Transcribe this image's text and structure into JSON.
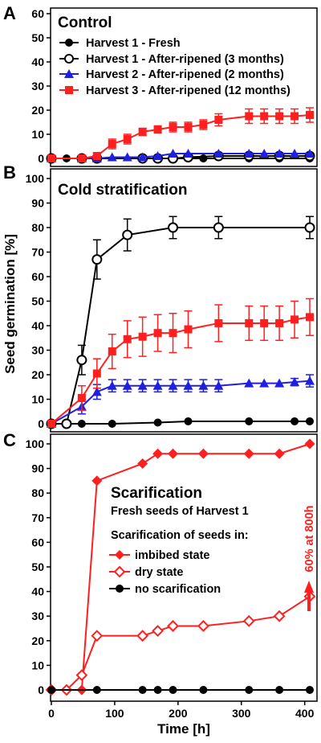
{
  "chart_data": [
    {
      "panel": "A",
      "type": "line",
      "title": "Control",
      "ylim": [
        0,
        60
      ],
      "yticks": [
        0,
        10,
        20,
        30,
        40,
        50,
        60
      ],
      "xlim": [
        0,
        408
      ],
      "series": [
        {
          "name": "Harvest 1 - Fresh",
          "color": "#000000",
          "marker": "circle-filled",
          "x": [
            0,
            24,
            48,
            72,
            144,
            168,
            192,
            240,
            312,
            360,
            408
          ],
          "y": [
            0,
            0,
            0,
            0,
            0,
            0,
            0,
            0,
            0,
            0,
            0
          ],
          "err": []
        },
        {
          "name": "Harvest 1 - After-ripened (3 months)",
          "color": "#000000",
          "marker": "circle-open",
          "x": [
            0,
            48,
            72,
            144,
            168,
            192,
            216,
            264,
            312,
            360,
            408
          ],
          "y": [
            0,
            0,
            0,
            0,
            0,
            0,
            0.5,
            1,
            1,
            1,
            1
          ],
          "err": []
        },
        {
          "name": "Harvest 2 - After-ripened (2 months)",
          "color": "#1f1fe0",
          "marker": "triangle",
          "x": [
            0,
            48,
            72,
            96,
            120,
            144,
            168,
            192,
            216,
            264,
            312,
            336,
            360,
            384,
            408
          ],
          "y": [
            0,
            0,
            0,
            0.5,
            0.5,
            0.5,
            1,
            2,
            2,
            2,
            2,
            2,
            2,
            2,
            2
          ],
          "err": []
        },
        {
          "name": "Harvest 3 - After-ripened (12 months)",
          "color": "#ff1f1f",
          "marker": "square",
          "x": [
            0,
            48,
            72,
            96,
            120,
            144,
            168,
            192,
            216,
            240,
            264,
            312,
            336,
            360,
            384,
            408
          ],
          "y": [
            0,
            0,
            1,
            6,
            8,
            11,
            12,
            13,
            13,
            14,
            16,
            17.5,
            17.5,
            17.5,
            17.5,
            18
          ],
          "err": [
            0,
            0,
            1,
            2,
            2,
            1.5,
            1.5,
            2,
            2,
            2,
            2.5,
            3,
            3,
            3,
            3,
            3
          ]
        }
      ]
    },
    {
      "panel": "B",
      "type": "line",
      "title": "Cold stratification",
      "ylabel": "Seed germination [%]",
      "ylim": [
        0,
        100
      ],
      "yticks": [
        0,
        10,
        20,
        30,
        40,
        50,
        60,
        70,
        80,
        90,
        100
      ],
      "xlim": [
        0,
        408
      ],
      "series": [
        {
          "name": "Harvest 1 - Fresh",
          "color": "#000000",
          "marker": "circle-filled",
          "x": [
            0,
            48,
            96,
            168,
            216,
            312,
            384,
            408
          ],
          "y": [
            0,
            0,
            0,
            0.5,
            1,
            1,
            1,
            1
          ],
          "err": []
        },
        {
          "name": "Harvest 1 - After-ripened (3 months)",
          "color": "#000000",
          "marker": "circle-open",
          "x": [
            0,
            24,
            48,
            72,
            120,
            192,
            264,
            408
          ],
          "y": [
            0,
            0,
            26,
            67,
            77,
            80,
            80,
            80
          ],
          "err": [
            0,
            0,
            6,
            8,
            6.5,
            4.5,
            4.5,
            4.5
          ]
        },
        {
          "name": "Harvest 2 - After-ripened (2 months)",
          "color": "#1f1fe0",
          "marker": "triangle",
          "x": [
            0,
            48,
            72,
            96,
            120,
            144,
            168,
            192,
            216,
            240,
            264,
            312,
            336,
            360,
            384,
            408
          ],
          "y": [
            0,
            7,
            13,
            15.5,
            15.5,
            15.5,
            15.5,
            15.5,
            15.5,
            15.5,
            15.5,
            16.5,
            16.5,
            16.5,
            17,
            17.5
          ],
          "err": [
            0,
            3,
            3,
            2.5,
            2.5,
            2.5,
            2.5,
            2.5,
            2.5,
            2.5,
            2.5,
            0,
            0,
            0,
            1.5,
            2.5
          ]
        },
        {
          "name": "Harvest 3 - After-ripened (12 months)",
          "color": "#ff1f1f",
          "marker": "square",
          "x": [
            0,
            48,
            72,
            96,
            120,
            144,
            168,
            192,
            216,
            264,
            312,
            336,
            360,
            384,
            408
          ],
          "y": [
            0,
            10.5,
            20.5,
            29.5,
            34.5,
            35.5,
            37,
            37,
            38.5,
            41,
            41,
            41,
            41,
            42.5,
            43.5
          ],
          "err": [
            0,
            5,
            6,
            7,
            7.5,
            8,
            7.5,
            8,
            7.5,
            7.5,
            7,
            7,
            7,
            7.5,
            7.5
          ]
        }
      ]
    },
    {
      "panel": "C",
      "type": "line",
      "title": "Scarification",
      "subtitle": "Fresh seeds of Harvest 1",
      "legend_title": "Scarification of seeds in:",
      "xlabel": "Time [h]",
      "ylim": [
        0,
        100
      ],
      "yticks": [
        0,
        10,
        20,
        30,
        40,
        50,
        60,
        70,
        80,
        90,
        100
      ],
      "xlim": [
        0,
        408
      ],
      "xticks": [
        0,
        100,
        200,
        300,
        400
      ],
      "annotation": "60% at 800h",
      "series": [
        {
          "name": "imbibed state",
          "color": "#ff1f1f",
          "marker": "diamond-filled",
          "x": [
            0,
            24,
            48,
            72,
            144,
            168,
            192,
            240,
            312,
            360,
            408
          ],
          "y": [
            0,
            0,
            0,
            85,
            92,
            96,
            96,
            96,
            96,
            96,
            100
          ],
          "err": []
        },
        {
          "name": "dry state",
          "color": "#ff1f1f",
          "marker": "diamond-open",
          "x": [
            0,
            24,
            48,
            72,
            144,
            168,
            192,
            240,
            312,
            360,
            408
          ],
          "y": [
            0,
            0,
            6,
            22,
            22,
            24,
            26,
            26,
            28,
            30,
            38
          ],
          "err": []
        },
        {
          "name": "no scarification",
          "color": "#000000",
          "marker": "circle-filled",
          "x": [
            0,
            72,
            144,
            168,
            192,
            240,
            312,
            360,
            408
          ],
          "y": [
            0,
            0,
            0,
            0,
            0,
            0,
            0,
            0,
            0
          ],
          "err": []
        }
      ]
    }
  ]
}
